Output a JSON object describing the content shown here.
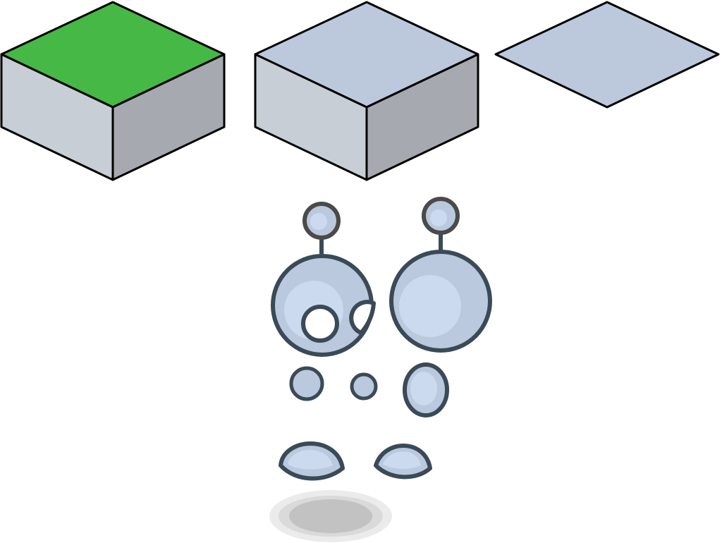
{
  "sprite_sheet": {
    "background": "#ffffff",
    "tiles": [
      {
        "name": "grass-block-tile",
        "kind": "block",
        "top_color": "#46b845",
        "left_color": "#c7ced6",
        "right_color": "#a6aab0"
      },
      {
        "name": "stone-block-tile",
        "kind": "block",
        "top_color": "#bcc8dc",
        "left_color": "#c7ced6",
        "right_color": "#a6aab0"
      },
      {
        "name": "flat-floor-tile",
        "kind": "flat",
        "top_color": "#bcc8dc"
      }
    ],
    "character_parts": [
      "antenna-left",
      "antenna-right",
      "head-left",
      "head-right",
      "hand-large",
      "hand-medium",
      "hand-small",
      "foot-left",
      "foot-right",
      "shadow"
    ],
    "colors": {
      "outline": "#000000",
      "part_fill": "#bac9de",
      "part_highlight": "#cbdaee",
      "part_outline": "#3a4a56",
      "antenna_outline": "#4a4a4a",
      "shadow_outer": "#ebebeb",
      "shadow_mid": "#dadada",
      "shadow_inner": "#c2c2c2"
    }
  }
}
